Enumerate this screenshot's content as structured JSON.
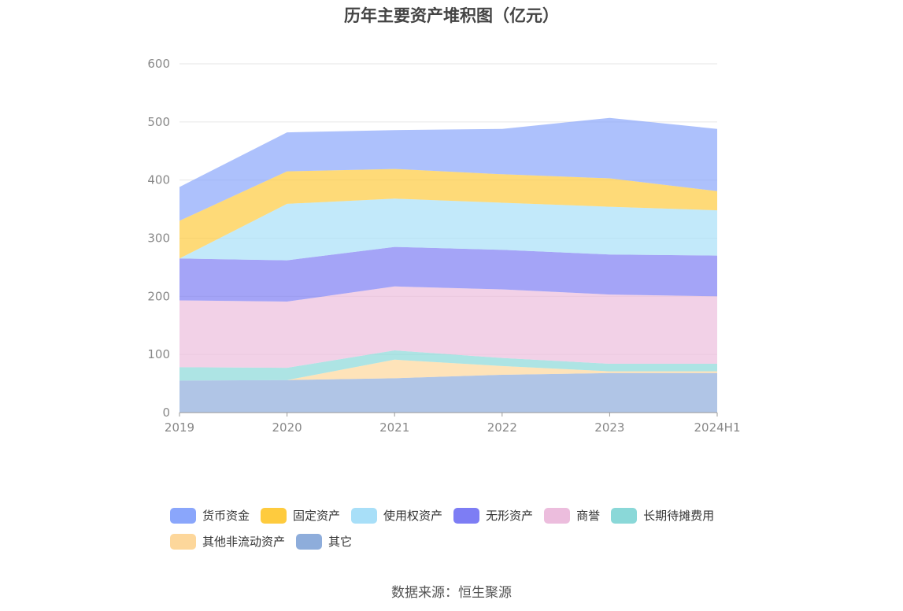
{
  "chart_data": {
    "type": "area",
    "stacked": true,
    "title": "历年主要资产堆积图（亿元）",
    "x": [
      "2019",
      "2020",
      "2021",
      "2022",
      "2023",
      "2024H1"
    ],
    "ylim": [
      0,
      600
    ],
    "yticks": [
      "0",
      "100",
      "200",
      "300",
      "400",
      "500",
      "600"
    ],
    "grid": true,
    "legend_position": "bottom",
    "series": [
      {
        "name": "其它",
        "color": "#8eaddb",
        "values": [
          55,
          56,
          59,
          65,
          68,
          68
        ]
      },
      {
        "name": "其他非流动资产",
        "color": "#fdd79b",
        "values": [
          0,
          0,
          32,
          15,
          3,
          3
        ]
      },
      {
        "name": "长期待摊费用",
        "color": "#8ad8d8",
        "values": [
          23,
          21,
          16,
          14,
          13,
          13
        ]
      },
      {
        "name": "商誉",
        "color": "#ecbddd",
        "values": [
          115,
          114,
          110,
          118,
          119,
          116
        ]
      },
      {
        "name": "无形资产",
        "color": "#7d7df4",
        "values": [
          72,
          71,
          68,
          68,
          69,
          70
        ]
      },
      {
        "name": "使用权资产",
        "color": "#a8dff8",
        "values": [
          0,
          97,
          83,
          81,
          82,
          78
        ]
      },
      {
        "name": "固定资产",
        "color": "#fecb3e",
        "values": [
          65,
          56,
          51,
          49,
          49,
          33
        ]
      },
      {
        "name": "货币资金",
        "color": "#8aa6fb",
        "values": [
          58,
          67,
          67,
          78,
          104,
          107
        ]
      }
    ]
  },
  "legend": {
    "items": [
      {
        "label": "货币资金",
        "color": "#8aa6fb"
      },
      {
        "label": "固定资产",
        "color": "#fecb3e"
      },
      {
        "label": "使用权资产",
        "color": "#a8dff8"
      },
      {
        "label": "无形资产",
        "color": "#7d7df4"
      },
      {
        "label": "商誉",
        "color": "#ecbddd"
      },
      {
        "label": "长期待摊费用",
        "color": "#8ad8d8"
      },
      {
        "label": "其他非流动资产",
        "color": "#fdd79b"
      },
      {
        "label": "其它",
        "color": "#8eaddb"
      }
    ]
  },
  "source": "数据来源：恒生聚源"
}
